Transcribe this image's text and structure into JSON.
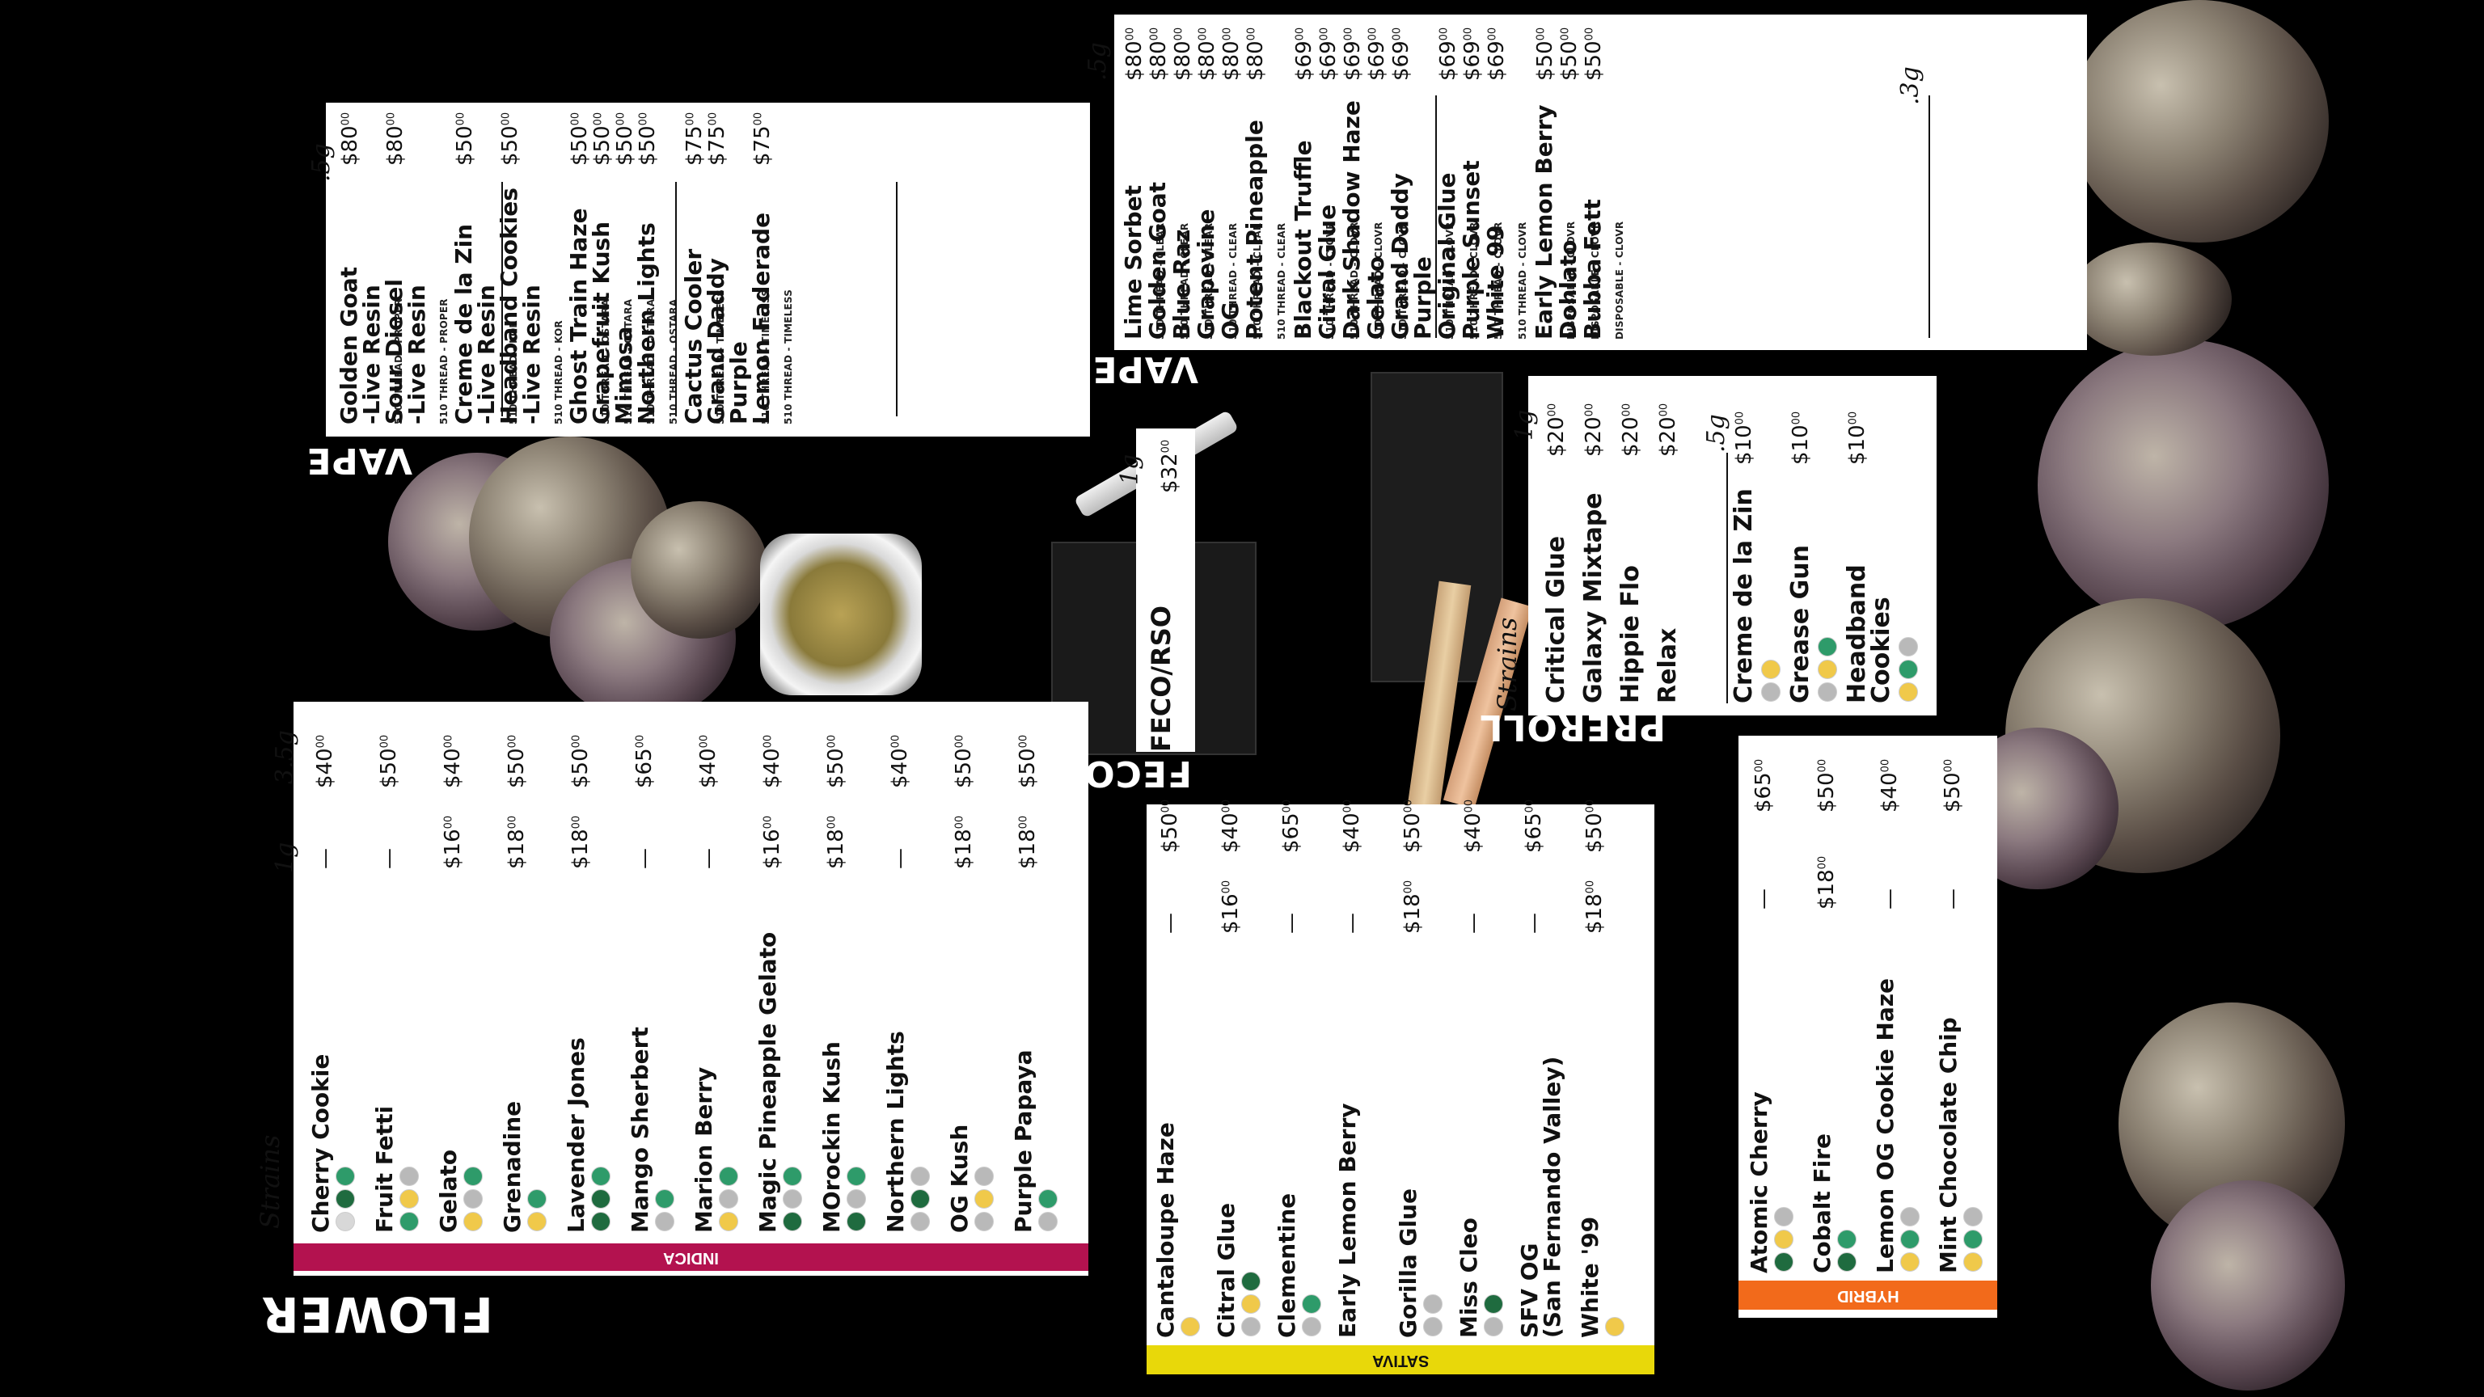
{
  "colors": {
    "indica": "#b3124f",
    "sativa": "#e8d80a",
    "hybrid": "#f26a1b",
    "background": "#000000",
    "panel": "#ffffff"
  },
  "sections": {
    "flower": "FLOWER",
    "vape": "VAPE",
    "feco": "FECO",
    "preroll": "PREROLL"
  },
  "labels": {
    "strains": "Strains",
    "w_1g": "1g",
    "w_35g": "3.5g",
    "w_5g": ".5g",
    "w_3g": ".3g",
    "indica_band": "INDICA",
    "hybrid_band": "HYBRID",
    "sativa_band": "SATIVA",
    "feco_rso": "FECO/RSO",
    "feco_price": "$32",
    "feco_cents": "00",
    "feco_weight": "1g"
  },
  "flower_indica": [
    {
      "name": "Cherry Cookie",
      "g1": "—",
      "g35": "$40",
      "icons": [
        "moon",
        "tree",
        "leaf"
      ]
    },
    {
      "name": "Fruit Fetti",
      "g1": "—",
      "g35": "$50",
      "icons": [
        "leaf",
        "pine",
        "grape"
      ]
    },
    {
      "name": "Gelato",
      "g1": "$16",
      "g35": "$40",
      "icons": [
        "pine",
        "grape",
        "leaf"
      ]
    },
    {
      "name": "Grenadine",
      "g1": "$18",
      "g35": "$50",
      "icons": [
        "pine",
        "leaf"
      ]
    },
    {
      "name": "Lavender Jones",
      "g1": "$18",
      "g35": "$50",
      "icons": [
        "tree",
        "tree",
        "leaf"
      ]
    },
    {
      "name": "Mango Sherbert",
      "g1": "—",
      "g35": "$65",
      "icons": [
        "grape",
        "leaf"
      ]
    },
    {
      "name": "Marion Berry",
      "g1": "—",
      "g35": "$40",
      "icons": [
        "pine",
        "grape",
        "leaf"
      ]
    },
    {
      "name": "Magic Pineapple Gelato",
      "g1": "$16",
      "g35": "$40",
      "icons": [
        "tree",
        "grape",
        "leaf"
      ]
    },
    {
      "name": "MOrockin Kush",
      "g1": "$18",
      "g35": "$50",
      "icons": [
        "tree",
        "grape",
        "leaf"
      ]
    },
    {
      "name": "Northern Lights",
      "g1": "—",
      "g35": "$40",
      "icons": [
        "grape",
        "tree",
        "grape"
      ]
    },
    {
      "name": "OG Kush",
      "g1": "$18",
      "g35": "$50",
      "icons": [
        "grape",
        "pine",
        "grape"
      ]
    },
    {
      "name": "Purple Papaya",
      "g1": "$18",
      "g35": "$50",
      "icons": [
        "grape",
        "leaf"
      ]
    }
  ],
  "flower_sativa": [
    {
      "name": "Cantaloupe Haze",
      "g1": "—",
      "g35": "$50",
      "icons": [
        "pine"
      ]
    },
    {
      "name": "Citral Glue",
      "g1": "$16",
      "g35": "$40",
      "icons": [
        "grape",
        "pine",
        "tree"
      ]
    },
    {
      "name": "Clementine",
      "g1": "—",
      "g35": "$65",
      "icons": [
        "grape",
        "leaf"
      ]
    },
    {
      "name": "Early Lemon Berry",
      "g1": "—",
      "g35": "$40",
      "icons": []
    },
    {
      "name": "Gorilla Glue",
      "g1": "$18",
      "g35": "$50",
      "icons": [
        "grape",
        "grape"
      ]
    },
    {
      "name": "Miss Cleo",
      "g1": "—",
      "g35": "$40",
      "icons": [
        "grape",
        "tree"
      ]
    },
    {
      "name": "SFV OG",
      "sub": "(San Fernando Valley)",
      "g1": "—",
      "g35": "$65",
      "icons": []
    },
    {
      "name": "White '99",
      "g1": "$18",
      "g35": "$50",
      "icons": [
        "pine"
      ]
    }
  ],
  "flower_hybrid": [
    {
      "name": "Atomic Cherry",
      "g1": "—",
      "g35": "$65",
      "icons": [
        "tree",
        "pine",
        "grape"
      ]
    },
    {
      "name": "Cobalt Fire",
      "g1": "$18",
      "g35": "$50",
      "icons": [
        "tree",
        "leaf"
      ]
    },
    {
      "name": "Lemon OG Cookie Haze",
      "g1": "—",
      "g35": "$40",
      "icons": [
        "pine",
        "leaf",
        "grape"
      ]
    },
    {
      "name": "Mint Chocolate Chip",
      "g1": "—",
      "g35": "$50",
      "icons": [
        "pine",
        "leaf",
        "grape"
      ]
    }
  ],
  "vape_left": [
    {
      "name": "Golden Goat",
      "name2": "-Live Resin",
      "sub": "510 THREAD - PROPER",
      "price": "$80"
    },
    {
      "name": "Sour Diesel",
      "name2": "-Live Resin",
      "sub": "510 THREAD - PROPER",
      "price": "$80"
    },
    {
      "name": "Creme de la Zin",
      "name2": "-Live Resin",
      "sub": "510 THREAD - KOR",
      "price": "$50"
    },
    {
      "name": "Headband Cookies",
      "name2": "-Live Resin",
      "sub": "510 THREAD - KOR",
      "price": "$50"
    },
    {
      "name": "Ghost Train Haze",
      "sub": "510 THREAD - OSTARA",
      "price": "$50"
    },
    {
      "name": "Grapefruit Kush",
      "sub": "510 THREAD - OSTARA",
      "price": "$50"
    },
    {
      "name": "Mimosa",
      "sub": "510 THREAD - OSTARA",
      "price": "$50"
    },
    {
      "name": "Northern Lights",
      "sub": "510 THREAD - OSTARA",
      "price": "$50"
    },
    {
      "name": "Cactus Cooler",
      "sub": "510 THREAD - TIMELESS",
      "price": "$75"
    },
    {
      "name": "Grand Daddy",
      "name2": "Purple",
      "sub": "510 THREAD - TIMELESS",
      "price": "$75"
    },
    {
      "name": "Lemon Faderade",
      "sub": "510 THREAD - TIMELESS",
      "price": "$75"
    }
  ],
  "vape_right": [
    {
      "name": "Lime Sorbet",
      "sub": "510 THREAD - CLEAR",
      "price": "$80"
    },
    {
      "name": "Golden Goat",
      "sub": "510 THREAD - CLEAR",
      "price": "$80"
    },
    {
      "name": "Blue Raz",
      "sub": "510 THREAD - CLEAR",
      "price": "$80"
    },
    {
      "name": "Grapevine",
      "sub": "510 THREAD - CLEAR",
      "price": "$80"
    },
    {
      "name": "OG",
      "sub": "510 THREAD - CLEAR",
      "price": "$80"
    },
    {
      "name": "Potent Pineapple",
      "sub": "510 THREAD - CLEAR",
      "price": "$80"
    },
    {
      "name": "Blackout Truffle",
      "sub": "510 THREAD - CLOVR",
      "price": "$69"
    },
    {
      "name": "Citral Glue",
      "sub": "510 THREAD - CLOVR",
      "price": "$69"
    },
    {
      "name": "Dark Shadow Haze",
      "sub": "510 THREAD - CLOVR",
      "price": "$69"
    },
    {
      "name": "Gelato",
      "sub": "510 THREAD - CLOVR",
      "price": "$69"
    },
    {
      "name": "Grand Daddy",
      "name2": "Purple",
      "sub": "510 THREAD - CLOVR",
      "price": "$69"
    },
    {
      "name": "Original Glue",
      "sub": "510 THREAD - CLOVR",
      "price": "$69"
    },
    {
      "name": "Purple Sunset",
      "sub": "510 THREAD - CLOVR",
      "price": "$69"
    },
    {
      "name": "White 99",
      "sub": "510 THREAD - CLOVR",
      "price": "$69"
    },
    {
      "name": "Early Lemon Berry",
      "sub": "DISPOSABLE - CLOVR",
      "price": "$50"
    },
    {
      "name": "Dohlato",
      "sub": "DISPOSABLE - CLOVR",
      "price": "$50"
    },
    {
      "name": "Bubba Fett",
      "sub": "DISPOSABLE - CLOVR",
      "price": "$50"
    }
  ],
  "preroll_1g": [
    {
      "name": "Critical Glue",
      "price": "$20"
    },
    {
      "name": "Galaxy Mixtape",
      "price": "$20"
    },
    {
      "name": "Hippie Flo",
      "price": "$20"
    },
    {
      "name": "Relax",
      "price": "$20"
    }
  ],
  "preroll_5g": [
    {
      "name": "Creme de la Zin",
      "price": "$10",
      "icons": [
        "grape",
        "pine"
      ]
    },
    {
      "name": "Grease Gun",
      "price": "$10",
      "icons": [
        "grape",
        "pine",
        "leaf"
      ]
    },
    {
      "name": "Headband",
      "name2": "Cookies",
      "price": "$10",
      "icons": [
        "pine",
        "leaf",
        "grape"
      ]
    }
  ],
  "cents": "00",
  "dash": "—"
}
